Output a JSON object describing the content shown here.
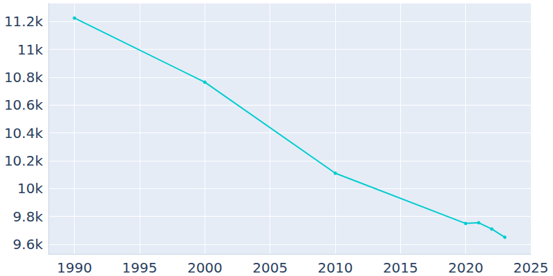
{
  "chart_data": {
    "type": "line",
    "x": [
      1990,
      2000,
      2010,
      2020,
      2021,
      2022,
      2023
    ],
    "values": [
      11225,
      10764,
      10110,
      9749,
      9754,
      9709,
      9650
    ],
    "color": "#00ccd0",
    "marker": "circle",
    "xlim": [
      1988,
      2025
    ],
    "xticks": [
      1990,
      1995,
      2000,
      2005,
      2010,
      2015,
      2020,
      2025
    ],
    "ylim": [
      9530,
      11330
    ],
    "yticks": [
      {
        "value": 9600,
        "label": "9.6k"
      },
      {
        "value": 9800,
        "label": "9.8k"
      },
      {
        "value": 10000,
        "label": "10k"
      },
      {
        "value": 10200,
        "label": "10.2k"
      },
      {
        "value": 10400,
        "label": "10.4k"
      },
      {
        "value": 10600,
        "label": "10.6k"
      },
      {
        "value": 10800,
        "label": "10.8k"
      },
      {
        "value": 11000,
        "label": "11k"
      },
      {
        "value": 11200,
        "label": "11.2k"
      }
    ],
    "grid": true
  }
}
